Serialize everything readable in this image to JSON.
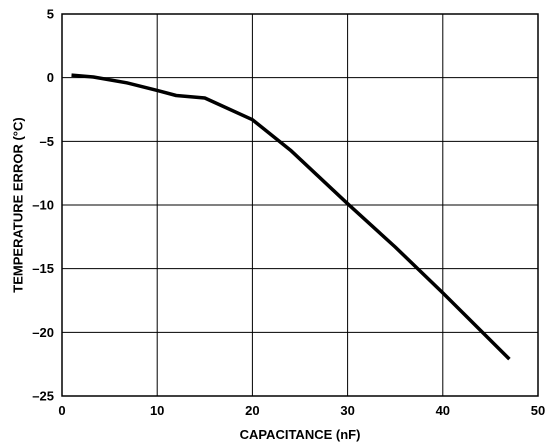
{
  "chart_data": {
    "type": "line",
    "title": "",
    "xlabel": "CAPACITANCE (nF)",
    "ylabel": "TEMPERATURE ERROR (°C)",
    "xlim": [
      0,
      50
    ],
    "ylim": [
      -25,
      5
    ],
    "xticks": [
      0,
      10,
      20,
      30,
      40,
      50
    ],
    "yticks": [
      5,
      0,
      -5,
      -10,
      -15,
      -20,
      -25
    ],
    "grid": true,
    "series": [
      {
        "x": [
          1,
          3.3,
          6.8,
          10,
          12,
          15,
          20,
          24,
          30,
          35,
          40,
          47
        ],
        "y": [
          0.2,
          0.05,
          -0.4,
          -1.0,
          -1.4,
          -1.6,
          -3.3,
          -5.7,
          -9.9,
          -13.3,
          -16.9,
          -22.1
        ]
      }
    ]
  }
}
